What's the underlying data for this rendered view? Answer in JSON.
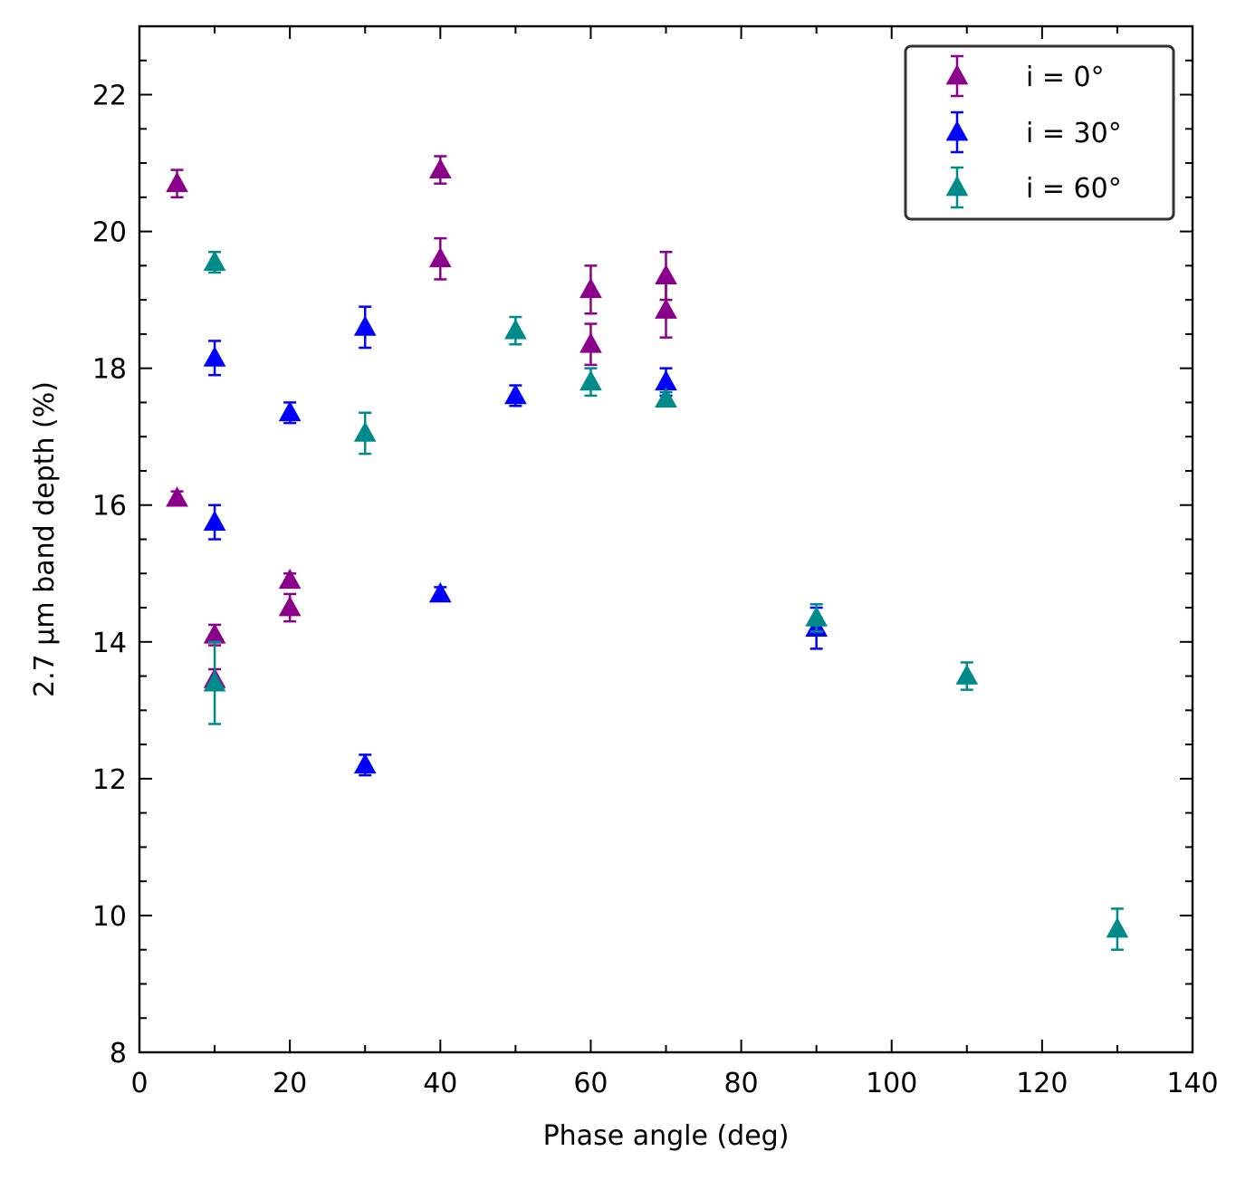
{
  "chart_data": {
    "type": "scatter",
    "title": "",
    "xlabel": "Phase angle (deg)",
    "ylabel": "2.7 µm band depth (%)",
    "xlim": [
      0,
      140
    ],
    "ylim": [
      8,
      23
    ],
    "xticks": [
      0,
      20,
      40,
      60,
      80,
      100,
      120,
      140
    ],
    "yticks": [
      8,
      10,
      12,
      14,
      16,
      18,
      20,
      22
    ],
    "x_minor_step": 10,
    "y_minor_step": 0.5,
    "grid": false,
    "legend_position": "top-right",
    "marker": "triangle-up",
    "series": [
      {
        "name": "i = 0°",
        "color": "#8b008b",
        "points": [
          {
            "x": 5,
            "y": 20.7,
            "err": 0.2
          },
          {
            "x": 5,
            "y": 16.1,
            "err": 0.1
          },
          {
            "x": 10,
            "y": 14.1,
            "err": 0.15
          },
          {
            "x": 10,
            "y": 13.45,
            "err": 0.15
          },
          {
            "x": 20,
            "y": 14.9,
            "err": 0.1
          },
          {
            "x": 20,
            "y": 14.5,
            "err": 0.2
          },
          {
            "x": 40,
            "y": 20.9,
            "err": 0.2
          },
          {
            "x": 40,
            "y": 19.6,
            "err": 0.3
          },
          {
            "x": 60,
            "y": 19.15,
            "err": 0.35
          },
          {
            "x": 60,
            "y": 18.35,
            "err": 0.3
          },
          {
            "x": 70,
            "y": 19.35,
            "err": 0.35
          },
          {
            "x": 70,
            "y": 18.85,
            "err": 0.4
          }
        ]
      },
      {
        "name": "i = 30°",
        "color": "#0000ff",
        "points": [
          {
            "x": 10,
            "y": 18.15,
            "err": 0.25
          },
          {
            "x": 10,
            "y": 15.75,
            "err": 0.25
          },
          {
            "x": 20,
            "y": 17.35,
            "err": 0.15
          },
          {
            "x": 30,
            "y": 18.6,
            "err": 0.3
          },
          {
            "x": 30,
            "y": 12.2,
            "err": 0.15
          },
          {
            "x": 40,
            "y": 14.7,
            "err": 0.1
          },
          {
            "x": 50,
            "y": 17.6,
            "err": 0.15
          },
          {
            "x": 70,
            "y": 17.8,
            "err": 0.2
          },
          {
            "x": 90,
            "y": 14.2,
            "err": 0.3
          }
        ]
      },
      {
        "name": "i = 60°",
        "color": "#008b8b",
        "points": [
          {
            "x": 10,
            "y": 19.55,
            "err": 0.15
          },
          {
            "x": 10,
            "y": 13.4,
            "err": 0.6
          },
          {
            "x": 30,
            "y": 17.05,
            "err": 0.3
          },
          {
            "x": 50,
            "y": 18.55,
            "err": 0.2
          },
          {
            "x": 60,
            "y": 17.8,
            "err": 0.2
          },
          {
            "x": 70,
            "y": 17.55,
            "err": 0.1
          },
          {
            "x": 90,
            "y": 14.35,
            "err": 0.2
          },
          {
            "x": 110,
            "y": 13.5,
            "err": 0.2
          },
          {
            "x": 130,
            "y": 9.8,
            "err": 0.3
          }
        ]
      }
    ]
  }
}
